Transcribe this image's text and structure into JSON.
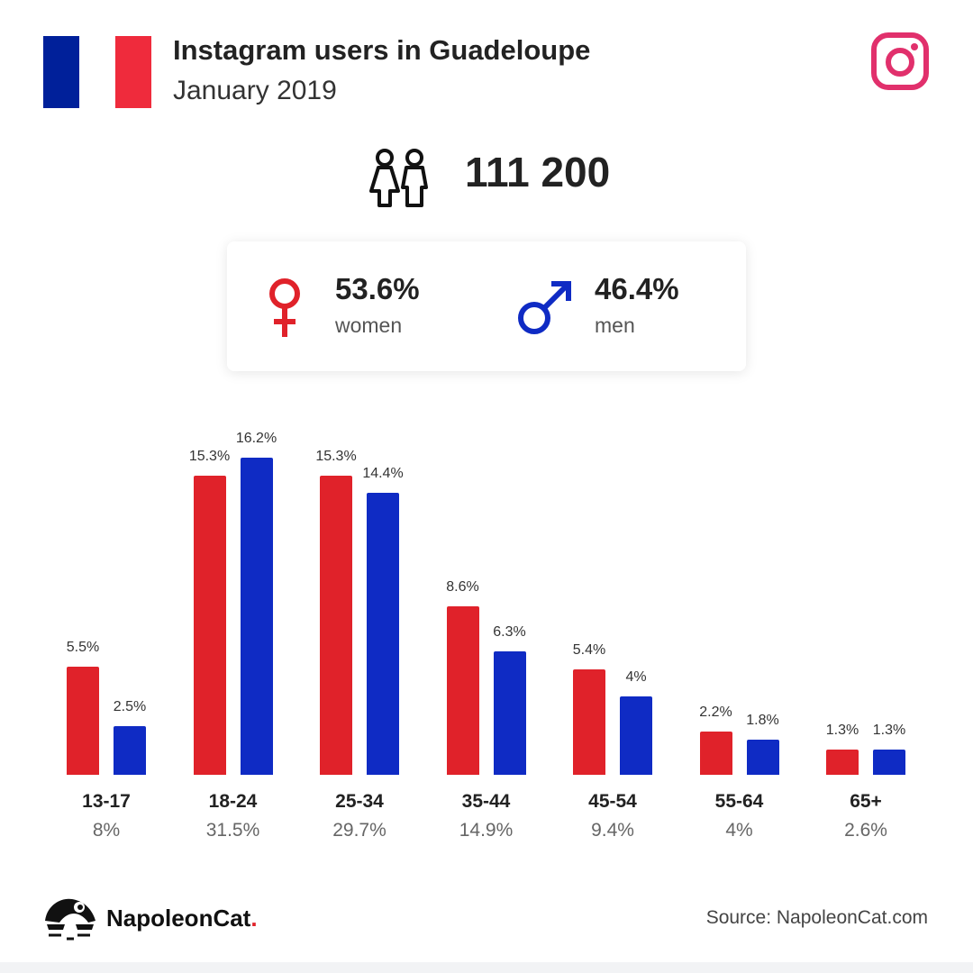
{
  "header": {
    "title": "Instagram users in Guadeloupe",
    "subtitle": "January 2019",
    "flag_colors": [
      "#00209a",
      "#ffffff",
      "#ef2b3c"
    ],
    "brand_icon": "instagram-icon"
  },
  "total": {
    "icon": "users-icon",
    "value": "111 200"
  },
  "gender": {
    "women": {
      "icon": "female-symbol-icon",
      "percent": "53.6%",
      "label": "women",
      "color": "#e0222a"
    },
    "men": {
      "icon": "male-symbol-icon",
      "percent": "46.4%",
      "label": "men",
      "color": "#0f2bc4"
    }
  },
  "chart_data": {
    "type": "bar",
    "categories": [
      "13-17",
      "18-24",
      "25-34",
      "35-44",
      "45-54",
      "55-64",
      "65+"
    ],
    "category_totals": [
      "8%",
      "31.5%",
      "29.7%",
      "14.9%",
      "9.4%",
      "4%",
      "2.6%"
    ],
    "series": [
      {
        "values": [
          5.5,
          15.3,
          15.3,
          8.6,
          5.4,
          2.2,
          1.3
        ],
        "labels": [
          "5.5%",
          "15.3%",
          "15.3%",
          "8.6%",
          "5.4%",
          "2.2%",
          "1.3%"
        ],
        "color": "#e0222a"
      },
      {
        "values": [
          2.5,
          16.2,
          14.4,
          6.3,
          4,
          1.8,
          1.3
        ],
        "labels": [
          "2.5%",
          "16.2%",
          "14.4%",
          "6.3%",
          "4%",
          "1.8%",
          "1.3%"
        ],
        "color": "#0f2bc4"
      }
    ],
    "title": "",
    "xlabel": "",
    "ylabel": "",
    "ylim": [
      0,
      16.2
    ],
    "grid": false,
    "legend": "none"
  },
  "footer": {
    "logo_text": "NapoleonCat",
    "logo_dot": ".",
    "logo_icon": "napoleoncat-logo-icon",
    "source": "Source: NapoleonCat.com"
  }
}
